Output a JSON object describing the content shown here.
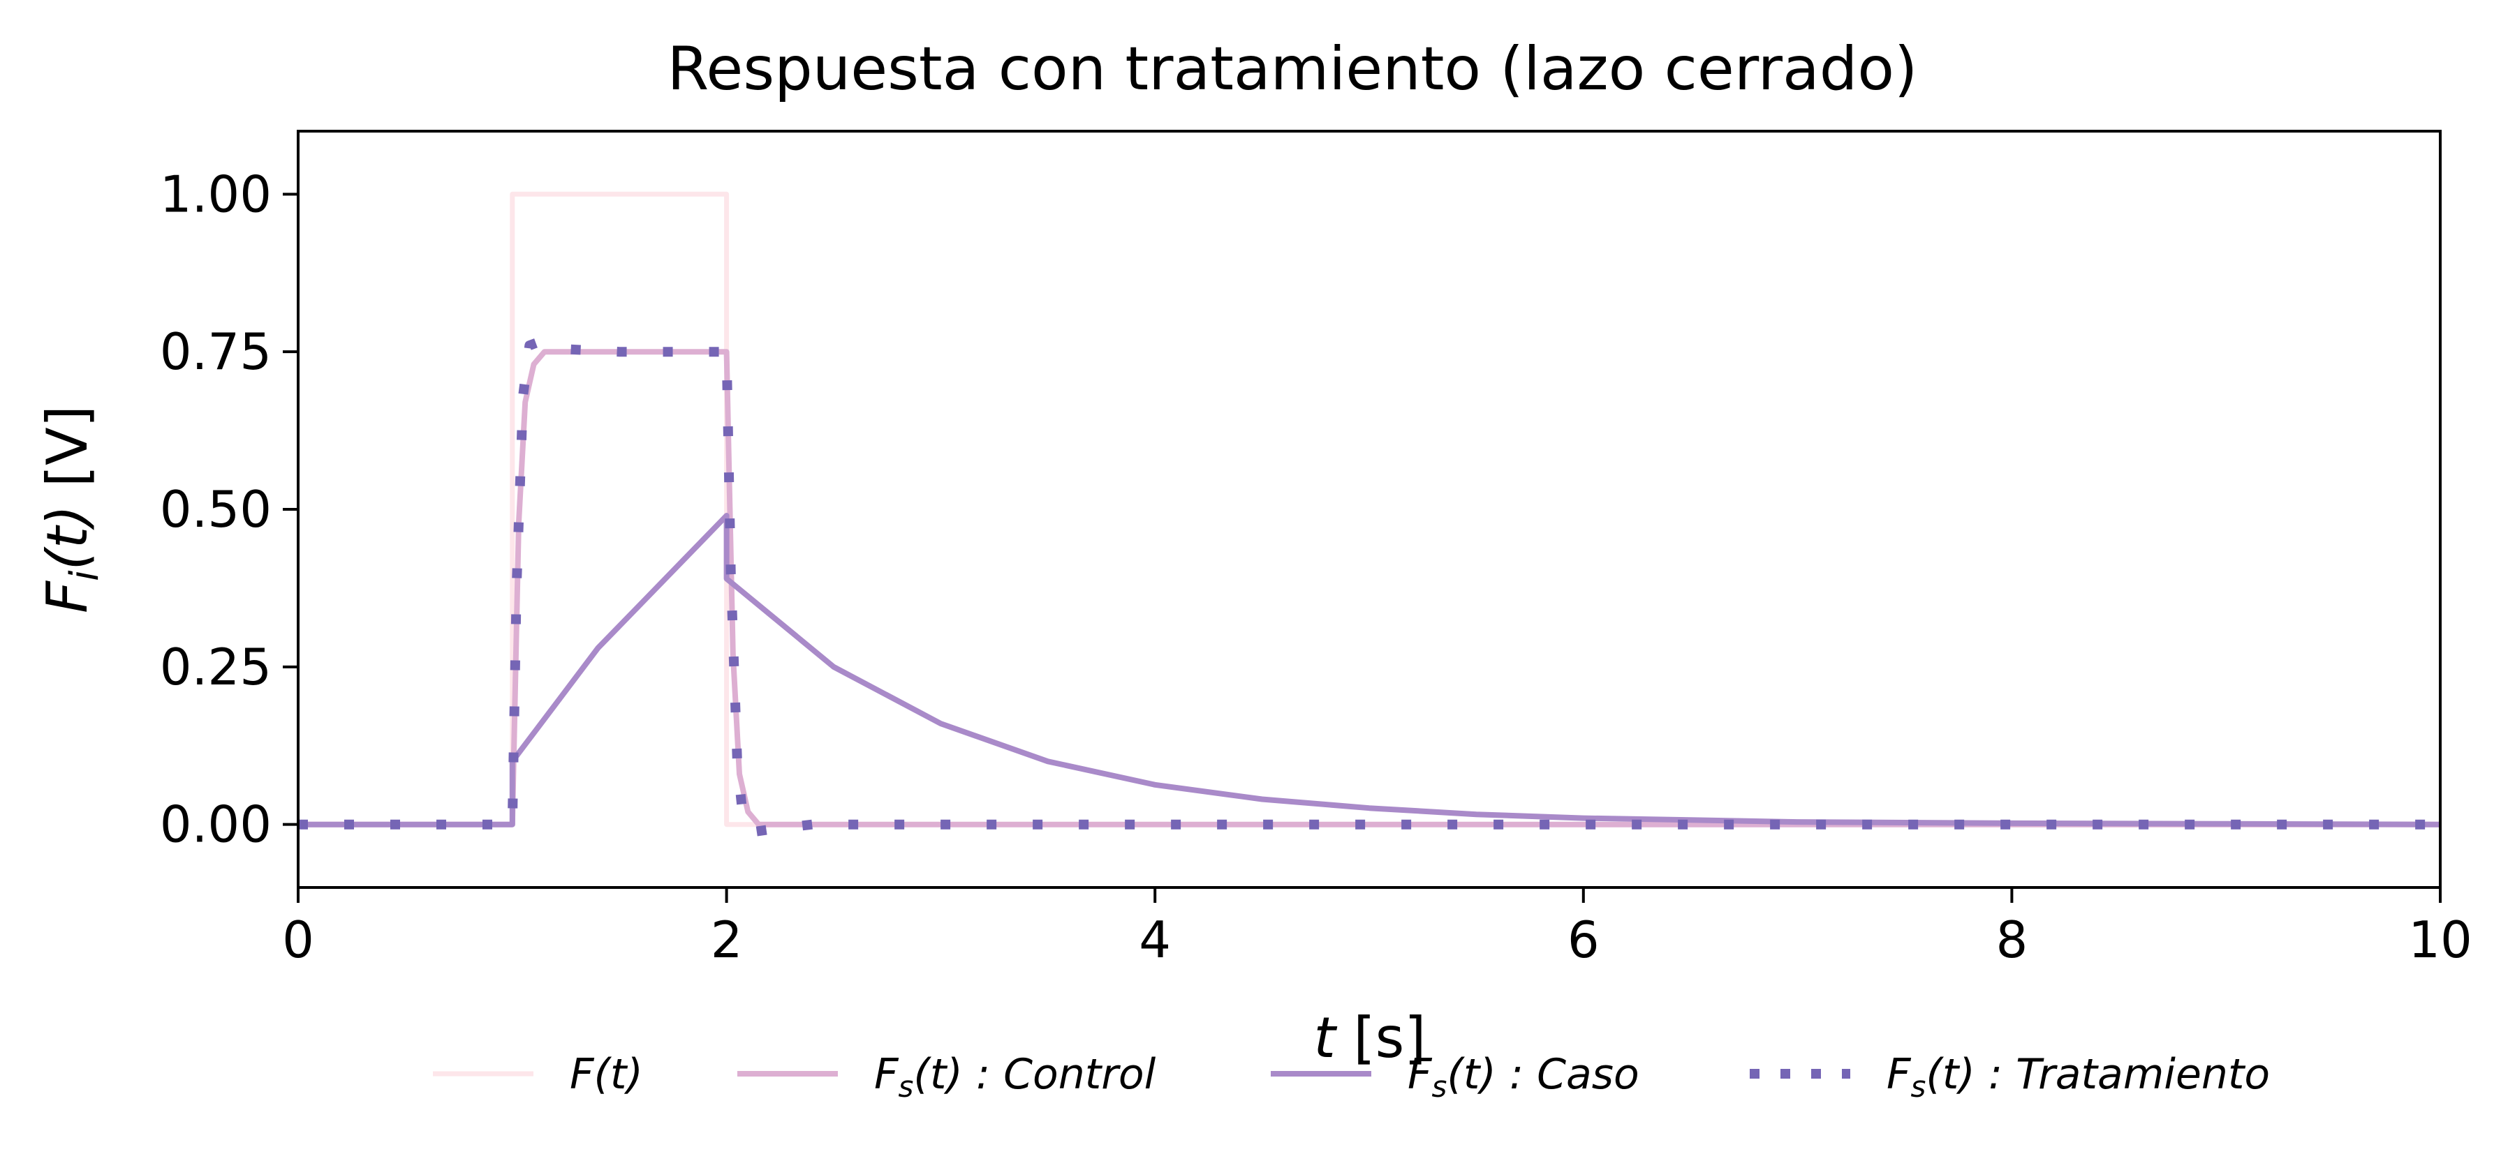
{
  "chart_data": {
    "type": "line",
    "title": "Respuesta con tratamiento (lazo cerrado)",
    "xlabel": "t [s]",
    "ylabel": "F_i(t) [V]",
    "xlim": [
      0,
      10
    ],
    "ylim": [
      -0.1,
      1.1
    ],
    "xticks": [
      0,
      2,
      4,
      6,
      8,
      10
    ],
    "xtick_labels": [
      "0",
      "2",
      "4",
      "6",
      "8",
      "10"
    ],
    "yticks": [
      0.0,
      0.25,
      0.5,
      0.75,
      1.0
    ],
    "ytick_labels": [
      "0.00",
      "0.25",
      "0.50",
      "0.75",
      "1.00"
    ],
    "grid": false,
    "legend_position": "bottom-center",
    "series": [
      {
        "name": "F(t)",
        "legend_base": "F",
        "legend_sub": "",
        "legend_suffix": "(t)",
        "color": "#fde6ea",
        "style": "solid",
        "x": [
          0,
          1,
          1,
          2,
          2,
          10
        ],
        "y": [
          0,
          0,
          1,
          1,
          0,
          0
        ]
      },
      {
        "name": "F_s(t) : Control",
        "legend_base": "F",
        "legend_sub": "s",
        "legend_suffix": "(t) : Control",
        "color": "#ddafd2",
        "style": "solid",
        "x": [
          0,
          1,
          1.03,
          1.06,
          1.1,
          1.15,
          2,
          2.03,
          2.06,
          2.1,
          2.15,
          10
        ],
        "y": [
          0,
          0,
          0.48,
          0.67,
          0.73,
          0.75,
          0.75,
          0.27,
          0.08,
          0.02,
          0,
          0
        ]
      },
      {
        "name": "F_s(t) : Caso",
        "legend_base": "F",
        "legend_sub": "s",
        "legend_suffix": "(t) : Caso",
        "color": "#a98ac9",
        "style": "solid",
        "x": [
          0,
          1,
          1,
          1.2,
          1.4,
          1.6,
          1.8,
          2,
          2,
          2.5,
          3,
          3.5,
          4,
          4.5,
          5,
          5.5,
          6,
          6.5,
          7,
          8,
          9,
          10
        ],
        "y": [
          0,
          0,
          0.1,
          0.19,
          0.28,
          0.35,
          0.42,
          0.49,
          0.39,
          0.25,
          0.16,
          0.1,
          0.063,
          0.04,
          0.026,
          0.016,
          0.01,
          0.007,
          0.004,
          0.002,
          0.001,
          0
        ]
      },
      {
        "name": "F_s(t) : Tratamiento",
        "legend_base": "F",
        "legend_sub": "s",
        "legend_suffix": "(t) : Tratamiento",
        "color": "#7565b5",
        "style": "dotted",
        "x": [
          0,
          1,
          1.02,
          1.05,
          1.08,
          1.12,
          1.2,
          1.5,
          2,
          2.02,
          2.05,
          2.08,
          2.12,
          2.2,
          2.4,
          10
        ],
        "y": [
          0,
          0,
          0.38,
          0.68,
          0.76,
          0.765,
          0.755,
          0.75,
          0.75,
          0.4,
          0.1,
          0,
          -0.012,
          -0.008,
          0,
          0
        ]
      }
    ]
  }
}
